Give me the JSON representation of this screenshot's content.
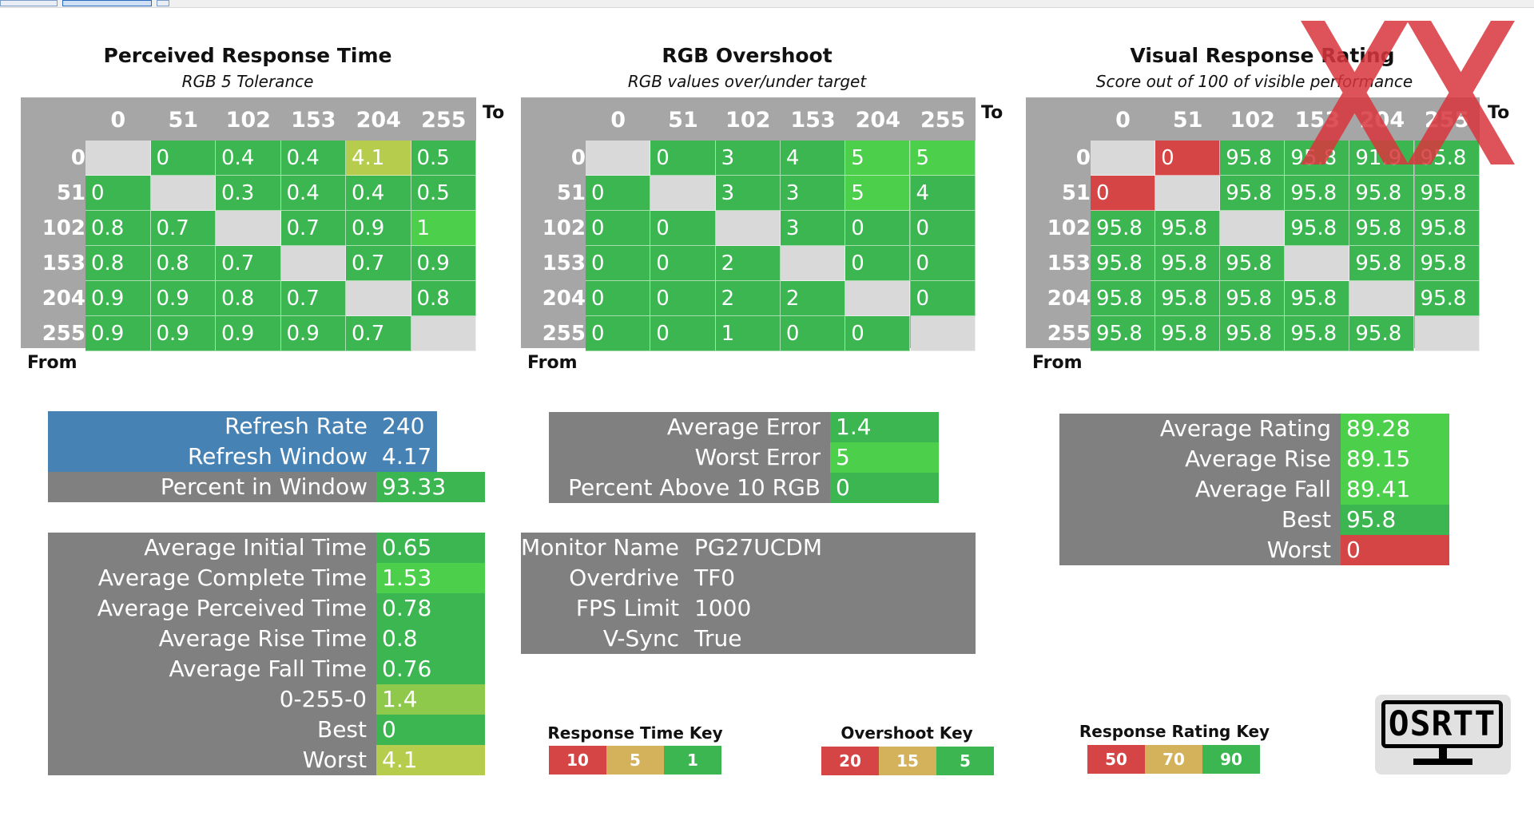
{
  "colors": {
    "grid_bg": "#a6a6a6",
    "cell_gray": "#d9d9d9",
    "stat_gray": "#808080",
    "stat_blue": "#4682b4",
    "green": "#3cb651",
    "bright_green": "#4ccf4b",
    "yellow_green": "#b5cc4c",
    "red": "#d64545",
    "key_yellow": "#d4b25c",
    "watermark_red": "#d9363e"
  },
  "column_headers": [
    "0",
    "51",
    "102",
    "153",
    "204",
    "255"
  ],
  "row_headers": [
    "0",
    "51",
    "102",
    "153",
    "204",
    "255"
  ],
  "to_label": "To",
  "from_label": "From",
  "perceived": {
    "title": "Perceived Response Time",
    "subtitle": "RGB 5 Tolerance",
    "values": [
      [
        "",
        "0",
        "0.4",
        "0.4",
        "4.1",
        "0.5"
      ],
      [
        "0",
        "",
        "0.3",
        "0.4",
        "0.4",
        "0.5"
      ],
      [
        "0.8",
        "0.7",
        "",
        "0.7",
        "0.9",
        "1"
      ],
      [
        "0.8",
        "0.8",
        "0.7",
        "",
        "0.7",
        "0.9"
      ],
      [
        "0.9",
        "0.9",
        "0.8",
        "0.7",
        "",
        "0.8"
      ],
      [
        "0.9",
        "0.9",
        "0.9",
        "0.9",
        "0.7",
        ""
      ]
    ],
    "colors": [
      [
        "gray",
        "green",
        "green",
        "green",
        "yellow",
        "green"
      ],
      [
        "green",
        "gray",
        "green",
        "green",
        "green",
        "green"
      ],
      [
        "green",
        "green",
        "gray",
        "green",
        "green",
        "bright"
      ],
      [
        "green",
        "green",
        "green",
        "gray",
        "green",
        "green"
      ],
      [
        "green",
        "green",
        "green",
        "green",
        "gray",
        "green"
      ],
      [
        "green",
        "green",
        "green",
        "green",
        "green",
        "gray"
      ]
    ]
  },
  "overshoot": {
    "title": "RGB Overshoot",
    "subtitle": "RGB values over/under target",
    "values": [
      [
        "",
        "0",
        "3",
        "4",
        "5",
        "5"
      ],
      [
        "0",
        "",
        "3",
        "3",
        "5",
        "4"
      ],
      [
        "0",
        "0",
        "",
        "3",
        "0",
        "0"
      ],
      [
        "0",
        "0",
        "2",
        "",
        "0",
        "0"
      ],
      [
        "0",
        "0",
        "2",
        "2",
        "",
        "0"
      ],
      [
        "0",
        "0",
        "1",
        "0",
        "0",
        ""
      ]
    ],
    "colors": [
      [
        "gray",
        "green",
        "green",
        "green",
        "bright",
        "bright"
      ],
      [
        "green",
        "gray",
        "green",
        "green",
        "bright",
        "green"
      ],
      [
        "green",
        "green",
        "gray",
        "green",
        "green",
        "green"
      ],
      [
        "green",
        "green",
        "green",
        "gray",
        "green",
        "green"
      ],
      [
        "green",
        "green",
        "green",
        "green",
        "gray",
        "green"
      ],
      [
        "green",
        "green",
        "green",
        "green",
        "green",
        "gray"
      ]
    ]
  },
  "rating": {
    "title": "Visual Response Rating",
    "subtitle": "Score out of 100 of visible performance",
    "values": [
      [
        "",
        "0",
        "95.8",
        "95.8",
        "91.9",
        "95.8"
      ],
      [
        "0",
        "",
        "95.8",
        "95.8",
        "95.8",
        "95.8"
      ],
      [
        "95.8",
        "95.8",
        "",
        "95.8",
        "95.8",
        "95.8"
      ],
      [
        "95.8",
        "95.8",
        "95.8",
        "",
        "95.8",
        "95.8"
      ],
      [
        "95.8",
        "95.8",
        "95.8",
        "95.8",
        "",
        "95.8"
      ],
      [
        "95.8",
        "95.8",
        "95.8",
        "95.8",
        "95.8",
        ""
      ]
    ],
    "colors": [
      [
        "gray",
        "red",
        "green",
        "green",
        "green",
        "green"
      ],
      [
        "red",
        "gray",
        "green",
        "green",
        "green",
        "green"
      ],
      [
        "green",
        "green",
        "gray",
        "green",
        "green",
        "green"
      ],
      [
        "green",
        "green",
        "green",
        "gray",
        "green",
        "green"
      ],
      [
        "green",
        "green",
        "green",
        "green",
        "gray",
        "green"
      ],
      [
        "green",
        "green",
        "green",
        "green",
        "green",
        "gray"
      ]
    ]
  },
  "refresh": {
    "refresh_rate_label": "Refresh Rate",
    "refresh_rate_value": "240",
    "refresh_window_label": "Refresh Window",
    "refresh_window_value": "4.17",
    "percent_in_window_label": "Percent in Window",
    "percent_in_window_value": "93.33"
  },
  "timing": {
    "avg_initial_label": "Average Initial Time",
    "avg_initial_value": "0.65",
    "avg_complete_label": "Average Complete Time",
    "avg_complete_value": "1.53",
    "avg_perceived_label": "Average Perceived Time",
    "avg_perceived_value": "0.78",
    "avg_rise_label": "Average Rise Time",
    "avg_rise_value": "0.8",
    "avg_fall_label": "Average Fall Time",
    "avg_fall_value": "0.76",
    "zero_255_zero_label": "0-255-0",
    "zero_255_zero_value": "1.4",
    "best_label": "Best",
    "best_value": "0",
    "worst_label": "Worst",
    "worst_value": "4.1"
  },
  "error": {
    "avg_error_label": "Average Error",
    "avg_error_value": "1.4",
    "worst_error_label": "Worst Error",
    "worst_error_value": "5",
    "pct_above_label": "Percent Above 10 RGB",
    "pct_above_value": "0"
  },
  "monitor": {
    "name_label": "Monitor Name",
    "name_value": "PG27UCDM",
    "overdrive_label": "Overdrive",
    "overdrive_value": "TF0",
    "fps_label": "FPS Limit",
    "fps_value": "1000",
    "vsync_label": "V-Sync",
    "vsync_value": "True"
  },
  "rating_stats": {
    "avg_rating_label": "Average Rating",
    "avg_rating_value": "89.28",
    "avg_rise_label": "Average Rise",
    "avg_rise_value": "89.15",
    "avg_fall_label": "Average Fall",
    "avg_fall_value": "89.41",
    "best_label": "Best",
    "best_value": "95.8",
    "worst_label": "Worst",
    "worst_value": "0"
  },
  "keys": {
    "response_title": "Response Time Key",
    "response_values": [
      "10",
      "5",
      "1"
    ],
    "overshoot_title": "Overshoot Key",
    "overshoot_values": [
      "20",
      "15",
      "5"
    ],
    "rating_title": "Response Rating Key",
    "rating_values": [
      "50",
      "70",
      "90"
    ]
  },
  "logo": {
    "text": "OSRTT",
    "icon": "monitor-icon"
  }
}
